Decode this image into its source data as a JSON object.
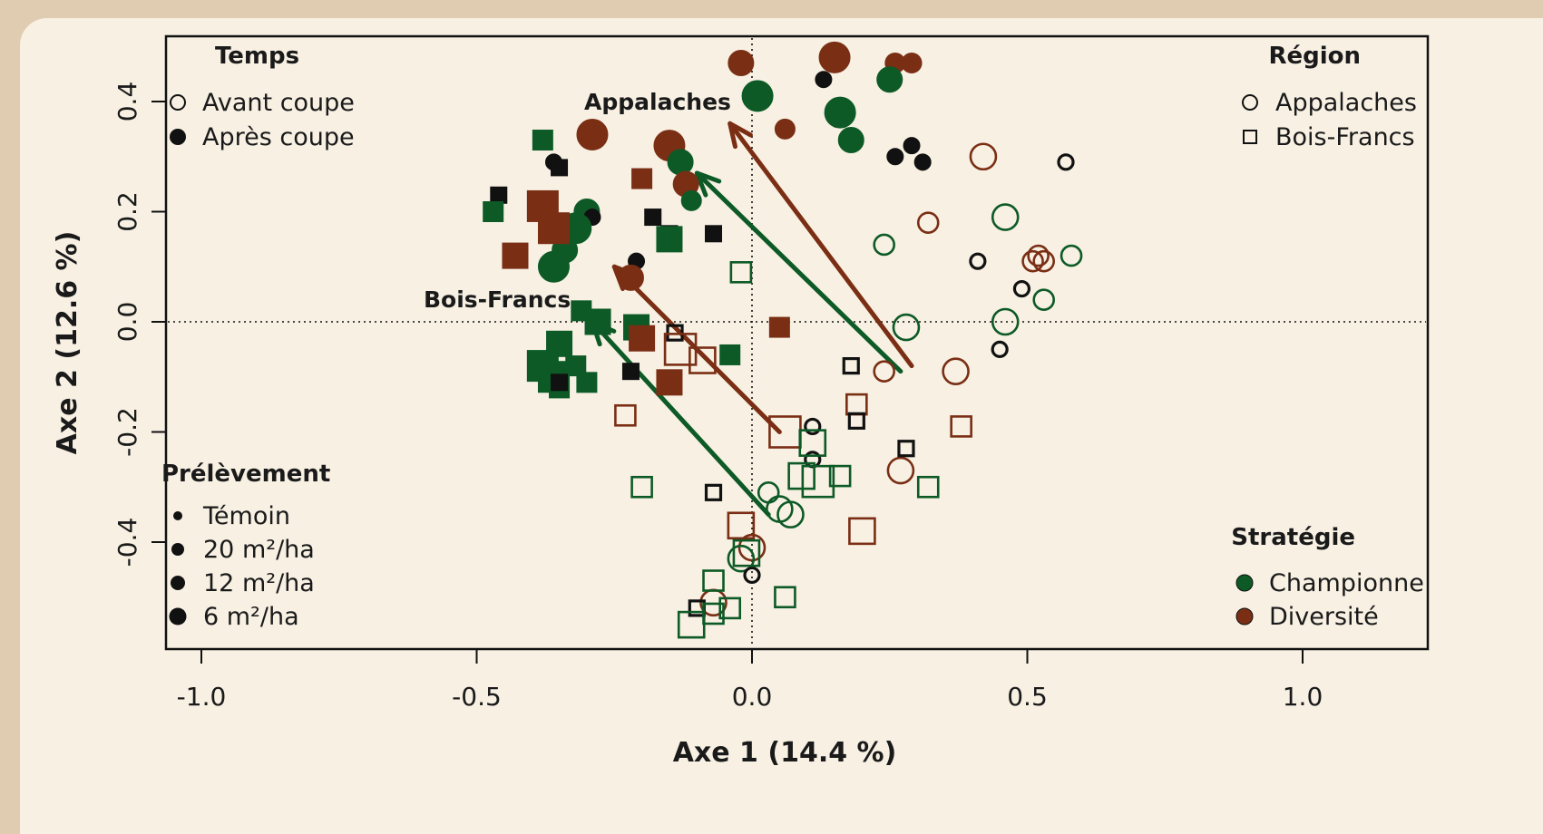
{
  "chart_data": {
    "type": "scatter",
    "xlabel": "Axe 1 (14.4 %)",
    "ylabel": "Axe 2 (12.6 %)",
    "xlim": [
      -1.1,
      1.2
    ],
    "ylim": [
      -0.6,
      0.52
    ],
    "xticks": [
      "-1.0",
      "-0.5",
      "0.0",
      "0.5",
      "1.0"
    ],
    "xtick_values": [
      -1.0,
      -0.5,
      0.0,
      0.5,
      1.0
    ],
    "yticks": [
      "-0.4",
      "-0.2",
      "0.0",
      "0.2",
      "0.4"
    ],
    "ytick_values": [
      -0.4,
      -0.2,
      0.0,
      0.2,
      0.4
    ],
    "reference_lines": {
      "x": 0,
      "y": 0,
      "style": "dotted"
    },
    "colors": {
      "Championne": "#0d5a26",
      "Diversité": "#7a2e14",
      "Témoin": "#111111"
    },
    "legends": {
      "temps": {
        "title": "Temps",
        "items": [
          "Avant coupe",
          "Après coupe"
        ]
      },
      "region": {
        "title": "Région",
        "items": [
          "Appalaches",
          "Bois-Francs"
        ]
      },
      "prelevement": {
        "title": "Prélèvement",
        "items": [
          "Témoin",
          "20 m²/ha",
          "12 m²/ha",
          "6 m²/ha"
        ]
      },
      "strategie": {
        "title": "Stratégie",
        "items": [
          "Championne",
          "Diversité"
        ]
      }
    },
    "annotations": [
      "Appalaches",
      "Bois-Francs"
    ],
    "arrows": [
      {
        "series": "Appalaches",
        "strategy": "Championne",
        "from": [
          0.27,
          -0.09
        ],
        "to": [
          -0.1,
          0.27
        ]
      },
      {
        "series": "Appalaches",
        "strategy": "Diversité",
        "from": [
          0.29,
          -0.08
        ],
        "to": [
          -0.04,
          0.36
        ]
      },
      {
        "series": "Bois-Francs",
        "strategy": "Championne",
        "from": [
          0.03,
          -0.35
        ],
        "to": [
          -0.29,
          0.0
        ]
      },
      {
        "series": "Bois-Francs",
        "strategy": "Diversité",
        "from": [
          0.05,
          -0.2
        ],
        "to": [
          -0.25,
          0.1
        ]
      }
    ],
    "points": [
      {
        "x": -0.02,
        "y": 0.47,
        "t": "apres",
        "r": "A",
        "s": "D",
        "p": 12
      },
      {
        "x": 0.15,
        "y": 0.48,
        "t": "apres",
        "r": "A",
        "s": "D",
        "p": 6
      },
      {
        "x": 0.26,
        "y": 0.47,
        "t": "apres",
        "r": "A",
        "s": "D",
        "p": 20
      },
      {
        "x": 0.29,
        "y": 0.47,
        "t": "apres",
        "r": "A",
        "s": "D",
        "p": 20
      },
      {
        "x": 0.01,
        "y": 0.41,
        "t": "apres",
        "r": "A",
        "s": "C",
        "p": 6
      },
      {
        "x": 0.25,
        "y": 0.44,
        "t": "apres",
        "r": "A",
        "s": "C",
        "p": 12
      },
      {
        "x": 0.13,
        "y": 0.44,
        "t": "apres",
        "r": "A",
        "s": "T",
        "p": 0
      },
      {
        "x": 0.16,
        "y": 0.38,
        "t": "apres",
        "r": "A",
        "s": "C",
        "p": 6
      },
      {
        "x": 0.18,
        "y": 0.33,
        "t": "apres",
        "r": "A",
        "s": "C",
        "p": 12
      },
      {
        "x": 0.06,
        "y": 0.35,
        "t": "apres",
        "r": "A",
        "s": "D",
        "p": 20
      },
      {
        "x": -0.29,
        "y": 0.34,
        "t": "apres",
        "r": "A",
        "s": "D",
        "p": 6
      },
      {
        "x": -0.15,
        "y": 0.32,
        "t": "apres",
        "r": "A",
        "s": "D",
        "p": 6
      },
      {
        "x": -0.13,
        "y": 0.29,
        "t": "apres",
        "r": "A",
        "s": "C",
        "p": 12
      },
      {
        "x": -0.12,
        "y": 0.25,
        "t": "apres",
        "r": "A",
        "s": "D",
        "p": 12
      },
      {
        "x": -0.11,
        "y": 0.22,
        "t": "apres",
        "r": "A",
        "s": "C",
        "p": 20
      },
      {
        "x": 0.29,
        "y": 0.32,
        "t": "apres",
        "r": "A",
        "s": "T",
        "p": 0
      },
      {
        "x": 0.26,
        "y": 0.3,
        "t": "apres",
        "r": "A",
        "s": "T",
        "p": 0
      },
      {
        "x": 0.31,
        "y": 0.29,
        "t": "apres",
        "r": "A",
        "s": "T",
        "p": 0
      },
      {
        "x": -0.36,
        "y": 0.29,
        "t": "apres",
        "r": "A",
        "s": "T",
        "p": 0
      },
      {
        "x": -0.3,
        "y": 0.2,
        "t": "apres",
        "r": "A",
        "s": "C",
        "p": 12
      },
      {
        "x": -0.29,
        "y": 0.19,
        "t": "apres",
        "r": "A",
        "s": "T",
        "p": 0
      },
      {
        "x": -0.32,
        "y": 0.17,
        "t": "apres",
        "r": "A",
        "s": "C",
        "p": 6
      },
      {
        "x": -0.34,
        "y": 0.13,
        "t": "apres",
        "r": "A",
        "s": "C",
        "p": 12
      },
      {
        "x": -0.36,
        "y": 0.1,
        "t": "apres",
        "r": "A",
        "s": "C",
        "p": 6
      },
      {
        "x": -0.21,
        "y": 0.11,
        "t": "apres",
        "r": "A",
        "s": "T",
        "p": 0
      },
      {
        "x": -0.22,
        "y": 0.08,
        "t": "apres",
        "r": "A",
        "s": "D",
        "p": 12
      },
      {
        "x": -0.38,
        "y": 0.33,
        "t": "apres",
        "r": "B",
        "s": "C",
        "p": 20
      },
      {
        "x": -0.35,
        "y": 0.28,
        "t": "apres",
        "r": "B",
        "s": "T",
        "p": 0
      },
      {
        "x": -0.46,
        "y": 0.23,
        "t": "apres",
        "r": "B",
        "s": "T",
        "p": 0
      },
      {
        "x": -0.47,
        "y": 0.2,
        "t": "apres",
        "r": "B",
        "s": "C",
        "p": 20
      },
      {
        "x": -0.2,
        "y": 0.26,
        "t": "apres",
        "r": "B",
        "s": "D",
        "p": 20
      },
      {
        "x": -0.38,
        "y": 0.21,
        "t": "apres",
        "r": "B",
        "s": "D",
        "p": 6
      },
      {
        "x": -0.36,
        "y": 0.17,
        "t": "apres",
        "r": "B",
        "s": "D",
        "p": 6
      },
      {
        "x": -0.43,
        "y": 0.12,
        "t": "apres",
        "r": "B",
        "s": "D",
        "p": 12
      },
      {
        "x": -0.18,
        "y": 0.19,
        "t": "apres",
        "r": "B",
        "s": "T",
        "p": 0
      },
      {
        "x": -0.15,
        "y": 0.16,
        "t": "apres",
        "r": "B",
        "s": "T",
        "p": 0
      },
      {
        "x": -0.15,
        "y": 0.15,
        "t": "apres",
        "r": "B",
        "s": "C",
        "p": 12
      },
      {
        "x": -0.07,
        "y": 0.16,
        "t": "apres",
        "r": "B",
        "s": "T",
        "p": 0
      },
      {
        "x": -0.31,
        "y": 0.02,
        "t": "apres",
        "r": "B",
        "s": "C",
        "p": 20
      },
      {
        "x": -0.28,
        "y": 0.0,
        "t": "apres",
        "r": "B",
        "s": "C",
        "p": 12
      },
      {
        "x": -0.21,
        "y": -0.01,
        "t": "apres",
        "r": "B",
        "s": "C",
        "p": 12
      },
      {
        "x": -0.2,
        "y": -0.03,
        "t": "apres",
        "r": "B",
        "s": "D",
        "p": 12
      },
      {
        "x": -0.35,
        "y": -0.04,
        "t": "apres",
        "r": "B",
        "s": "C",
        "p": 12
      },
      {
        "x": -0.38,
        "y": -0.08,
        "t": "apres",
        "r": "B",
        "s": "C",
        "p": 6
      },
      {
        "x": -0.32,
        "y": -0.08,
        "t": "apres",
        "r": "B",
        "s": "C",
        "p": 20
      },
      {
        "x": -0.36,
        "y": -0.1,
        "t": "apres",
        "r": "B",
        "s": "C",
        "p": 6
      },
      {
        "x": -0.3,
        "y": -0.11,
        "t": "apres",
        "r": "B",
        "s": "C",
        "p": 20
      },
      {
        "x": -0.35,
        "y": -0.12,
        "t": "apres",
        "r": "B",
        "s": "C",
        "p": 20
      },
      {
        "x": -0.35,
        "y": -0.11,
        "t": "apres",
        "r": "B",
        "s": "T",
        "p": 0
      },
      {
        "x": -0.22,
        "y": -0.09,
        "t": "apres",
        "r": "B",
        "s": "T",
        "p": 0
      },
      {
        "x": -0.15,
        "y": -0.11,
        "t": "apres",
        "r": "B",
        "s": "D",
        "p": 12
      },
      {
        "x": -0.04,
        "y": -0.06,
        "t": "apres",
        "r": "B",
        "s": "C",
        "p": 20
      },
      {
        "x": 0.05,
        "y": -0.01,
        "t": "apres",
        "r": "B",
        "s": "D",
        "p": 20
      },
      {
        "x": 0.42,
        "y": 0.3,
        "t": "avant",
        "r": "A",
        "s": "D",
        "p": 12
      },
      {
        "x": 0.57,
        "y": 0.29,
        "t": "avant",
        "r": "A",
        "s": "T",
        "p": 0
      },
      {
        "x": 0.46,
        "y": 0.19,
        "t": "avant",
        "r": "A",
        "s": "C",
        "p": 12
      },
      {
        "x": 0.32,
        "y": 0.18,
        "t": "avant",
        "r": "A",
        "s": "D",
        "p": 20
      },
      {
        "x": 0.24,
        "y": 0.14,
        "t": "avant",
        "r": "A",
        "s": "C",
        "p": 20
      },
      {
        "x": 0.41,
        "y": 0.11,
        "t": "avant",
        "r": "A",
        "s": "T",
        "p": 0
      },
      {
        "x": 0.51,
        "y": 0.11,
        "t": "avant",
        "r": "A",
        "s": "D",
        "p": 20
      },
      {
        "x": 0.52,
        "y": 0.12,
        "t": "avant",
        "r": "A",
        "s": "D",
        "p": 20
      },
      {
        "x": 0.53,
        "y": 0.11,
        "t": "avant",
        "r": "A",
        "s": "D",
        "p": 20
      },
      {
        "x": 0.58,
        "y": 0.12,
        "t": "avant",
        "r": "A",
        "s": "C",
        "p": 20
      },
      {
        "x": 0.49,
        "y": 0.06,
        "t": "avant",
        "r": "A",
        "s": "T",
        "p": 0
      },
      {
        "x": 0.53,
        "y": 0.04,
        "t": "avant",
        "r": "A",
        "s": "C",
        "p": 20
      },
      {
        "x": 0.46,
        "y": 0.0,
        "t": "avant",
        "r": "A",
        "s": "C",
        "p": 12
      },
      {
        "x": 0.28,
        "y": -0.01,
        "t": "avant",
        "r": "A",
        "s": "C",
        "p": 12
      },
      {
        "x": 0.45,
        "y": -0.05,
        "t": "avant",
        "r": "A",
        "s": "T",
        "p": 0
      },
      {
        "x": 0.24,
        "y": -0.09,
        "t": "avant",
        "r": "A",
        "s": "D",
        "p": 20
      },
      {
        "x": 0.37,
        "y": -0.09,
        "t": "avant",
        "r": "A",
        "s": "D",
        "p": 12
      },
      {
        "x": 0.11,
        "y": -0.19,
        "t": "avant",
        "r": "A",
        "s": "T",
        "p": 0
      },
      {
        "x": 0.11,
        "y": -0.25,
        "t": "avant",
        "r": "A",
        "s": "T",
        "p": 0
      },
      {
        "x": 0.27,
        "y": -0.27,
        "t": "avant",
        "r": "A",
        "s": "D",
        "p": 12
      },
      {
        "x": 0.03,
        "y": -0.31,
        "t": "avant",
        "r": "A",
        "s": "C",
        "p": 20
      },
      {
        "x": 0.05,
        "y": -0.34,
        "t": "avant",
        "r": "A",
        "s": "C",
        "p": 12
      },
      {
        "x": 0.07,
        "y": -0.35,
        "t": "avant",
        "r": "A",
        "s": "C",
        "p": 12
      },
      {
        "x": 0.0,
        "y": -0.41,
        "t": "avant",
        "r": "A",
        "s": "D",
        "p": 12
      },
      {
        "x": -0.02,
        "y": -0.43,
        "t": "avant",
        "r": "A",
        "s": "C",
        "p": 12
      },
      {
        "x": 0.0,
        "y": -0.46,
        "t": "avant",
        "r": "A",
        "s": "T",
        "p": 0
      },
      {
        "x": -0.07,
        "y": -0.51,
        "t": "avant",
        "r": "A",
        "s": "D",
        "p": 12
      },
      {
        "x": -0.02,
        "y": 0.09,
        "t": "avant",
        "r": "B",
        "s": "C",
        "p": 20
      },
      {
        "x": -0.14,
        "y": -0.02,
        "t": "avant",
        "r": "B",
        "s": "T",
        "p": 0
      },
      {
        "x": -0.13,
        "y": -0.05,
        "t": "avant",
        "r": "B",
        "s": "D",
        "p": 6
      },
      {
        "x": -0.09,
        "y": -0.07,
        "t": "avant",
        "r": "B",
        "s": "D",
        "p": 12
      },
      {
        "x": 0.18,
        "y": -0.08,
        "t": "avant",
        "r": "B",
        "s": "T",
        "p": 0
      },
      {
        "x": 0.19,
        "y": -0.15,
        "t": "avant",
        "r": "B",
        "s": "D",
        "p": 20
      },
      {
        "x": 0.19,
        "y": -0.18,
        "t": "avant",
        "r": "B",
        "s": "T",
        "p": 0
      },
      {
        "x": -0.23,
        "y": -0.17,
        "t": "avant",
        "r": "B",
        "s": "D",
        "p": 20
      },
      {
        "x": 0.06,
        "y": -0.2,
        "t": "avant",
        "r": "B",
        "s": "D",
        "p": 6
      },
      {
        "x": 0.38,
        "y": -0.19,
        "t": "avant",
        "r": "B",
        "s": "D",
        "p": 20
      },
      {
        "x": 0.11,
        "y": -0.22,
        "t": "avant",
        "r": "B",
        "s": "C",
        "p": 12
      },
      {
        "x": 0.28,
        "y": -0.23,
        "t": "avant",
        "r": "B",
        "s": "T",
        "p": 0
      },
      {
        "x": 0.09,
        "y": -0.28,
        "t": "avant",
        "r": "B",
        "s": "C",
        "p": 12
      },
      {
        "x": 0.16,
        "y": -0.28,
        "t": "avant",
        "r": "B",
        "s": "C",
        "p": 20
      },
      {
        "x": 0.12,
        "y": -0.29,
        "t": "avant",
        "r": "B",
        "s": "C",
        "p": 6
      },
      {
        "x": 0.32,
        "y": -0.3,
        "t": "avant",
        "r": "B",
        "s": "C",
        "p": 20
      },
      {
        "x": -0.2,
        "y": -0.3,
        "t": "avant",
        "r": "B",
        "s": "C",
        "p": 20
      },
      {
        "x": -0.07,
        "y": -0.31,
        "t": "avant",
        "r": "B",
        "s": "T",
        "p": 0
      },
      {
        "x": -0.02,
        "y": -0.37,
        "t": "avant",
        "r": "B",
        "s": "D",
        "p": 12
      },
      {
        "x": 0.2,
        "y": -0.38,
        "t": "avant",
        "r": "B",
        "s": "D",
        "p": 12
      },
      {
        "x": -0.01,
        "y": -0.42,
        "t": "avant",
        "r": "B",
        "s": "C",
        "p": 12
      },
      {
        "x": -0.07,
        "y": -0.47,
        "t": "avant",
        "r": "B",
        "s": "C",
        "p": 20
      },
      {
        "x": 0.06,
        "y": -0.5,
        "t": "avant",
        "r": "B",
        "s": "C",
        "p": 20
      },
      {
        "x": -0.1,
        "y": -0.52,
        "t": "avant",
        "r": "B",
        "s": "T",
        "p": 0
      },
      {
        "x": -0.07,
        "y": -0.53,
        "t": "avant",
        "r": "B",
        "s": "C",
        "p": 20
      },
      {
        "x": -0.04,
        "y": -0.52,
        "t": "avant",
        "r": "B",
        "s": "C",
        "p": 20
      },
      {
        "x": -0.11,
        "y": -0.55,
        "t": "avant",
        "r": "B",
        "s": "C",
        "p": 12
      }
    ]
  }
}
